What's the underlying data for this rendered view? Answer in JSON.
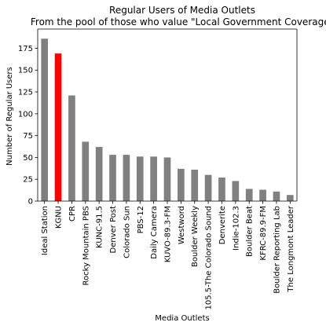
{
  "chart_data": {
    "type": "bar",
    "title": "Regular Users of Media Outlets",
    "subtitle": "From the pool of those who value \"Local Government Coverage\"",
    "xlabel": "Media Outlets",
    "ylabel": "Number of Regular Users",
    "ylim": [
      0,
      197
    ],
    "yticks": [
      0,
      25,
      50,
      75,
      100,
      125,
      150,
      175
    ],
    "categories": [
      "Ideal Station",
      "KGNU",
      "CPR",
      "Rocky Mountain PBS",
      "KUNC-91.5",
      "Denver Post",
      "Colorado Sun",
      "PBS-12",
      "Daily Camera",
      "KUVO-89.3-FM",
      "Westword",
      "Boulder Weekly",
      "105.5-The Colorado Sound",
      "Denverite",
      "Indie-102.3",
      "Boulder Beat",
      "KFRC-89.9-FM",
      "Boulder Reporting Lab",
      "The Longmont Leader"
    ],
    "values": [
      186,
      169,
      121,
      68,
      62,
      53,
      53,
      51,
      51,
      50,
      37,
      36,
      30,
      27,
      23,
      14,
      13,
      11,
      7
    ],
    "highlight_category": "KGNU",
    "colors": {
      "bar": "#808080",
      "highlight": "#ff0000",
      "axis": "#000000",
      "background": "#ffffff"
    },
    "grid": false,
    "legend": "none"
  }
}
